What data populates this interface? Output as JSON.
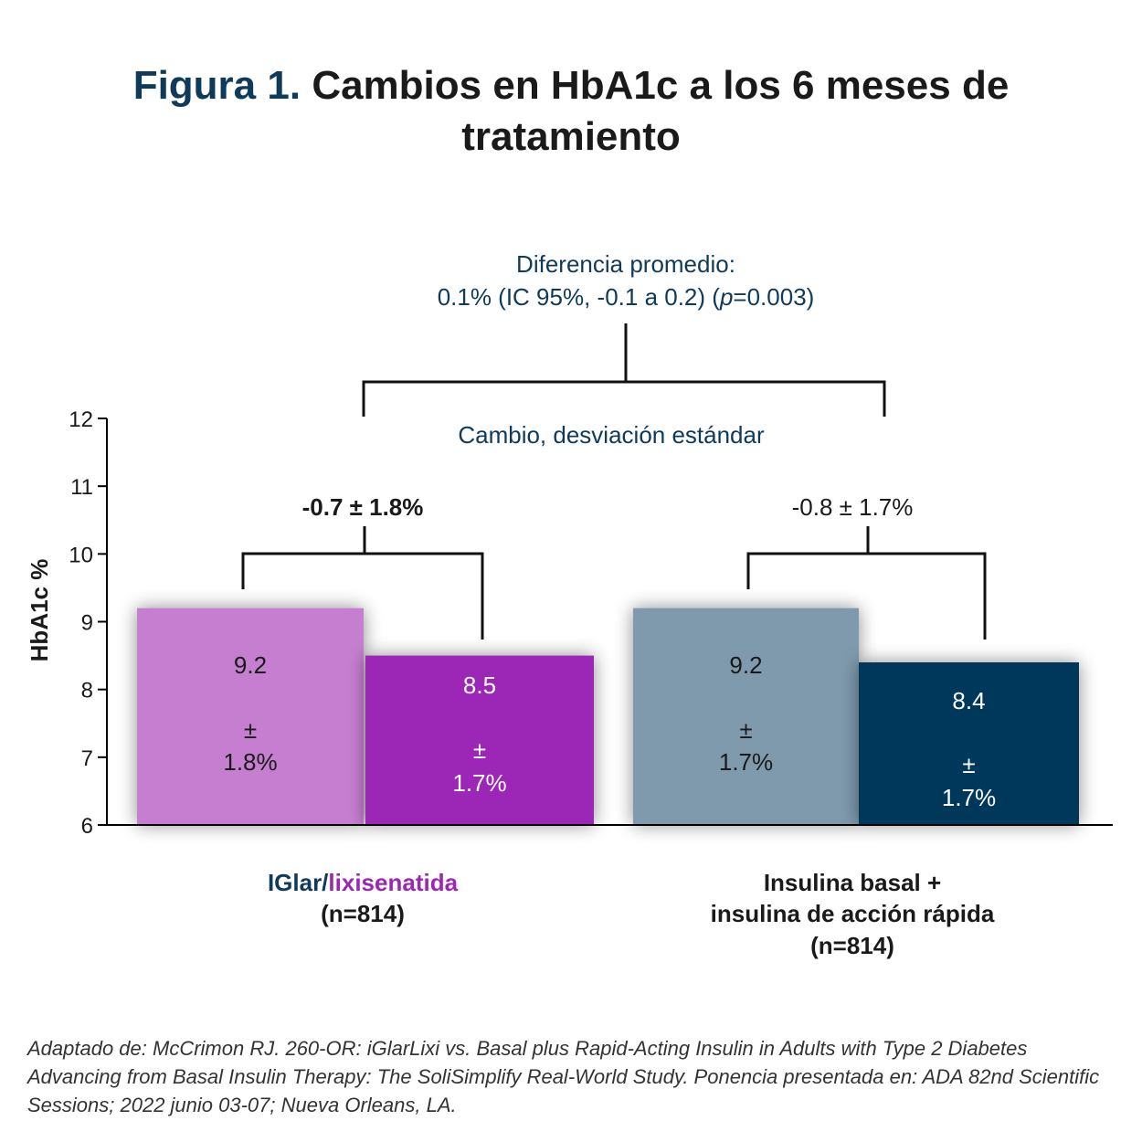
{
  "title": {
    "prefix": "Figura 1.",
    "text": "Cambios en HbA1c a los 6 meses de tratamiento"
  },
  "colors": {
    "navy": "#0e3a5c",
    "iglar_baseline": "#c67fd0",
    "iglar_6m": "#9c27b5",
    "basal_baseline": "#7f9aad",
    "basal_6m": "#03385c"
  },
  "chart_data": {
    "type": "bar",
    "ylabel": "HbA1c %",
    "ylim": [
      6,
      12
    ],
    "yticks": [
      "6",
      "7",
      "8",
      "9",
      "10",
      "11",
      "12"
    ],
    "top_annotation": {
      "line1": "Diferencia promedio:",
      "line2_a": "0.1% (IC 95%, -0.1 a 0.2) (",
      "line2_p": "p",
      "line2_b": "=0.003)"
    },
    "middle_annotation": "Cambio, desviación estándar",
    "groups": [
      {
        "label_part1": "IGlar/",
        "label_part2": "lixisenatida",
        "label_n": "(n=814)",
        "change": "-0.7 ± 1.8%",
        "change_bold": true,
        "bars": [
          {
            "value": 9.2,
            "text_value": "9.2",
            "text_pm": "±",
            "text_sd": "1.8%",
            "color": "#c67fd0",
            "text_color": "#1a1a1a"
          },
          {
            "value": 8.5,
            "text_value": "8.5",
            "text_pm": "±",
            "text_sd": "1.7%",
            "color": "#9c27b5",
            "text_color": "#ffffff"
          }
        ]
      },
      {
        "label_lines": [
          "Insulina basal +",
          "insulina de acción rápida",
          "(n=814)"
        ],
        "change": "-0.8 ± 1.7%",
        "change_bold": false,
        "bars": [
          {
            "value": 9.2,
            "text_value": "9.2",
            "text_pm": "±",
            "text_sd": "1.7%",
            "color": "#7f9aad",
            "text_color": "#1a1a1a"
          },
          {
            "value": 8.4,
            "text_value": "8.4",
            "text_pm": "±",
            "text_sd": "1.7%",
            "color": "#03385c",
            "text_color": "#ffffff"
          }
        ]
      }
    ]
  },
  "source": "Adaptado de:  McCrimon RJ. 260-OR: iGlarLixi vs. Basal plus Rapid-Acting Insulin in Adults with Type 2 Diabetes Advancing from Basal Insulin Therapy: The SoliSimplify Real-World Study. Ponencia presentada en: ADA 82nd Scientific Sessions; 2022 junio 03-07; Nueva Orleans, LA."
}
